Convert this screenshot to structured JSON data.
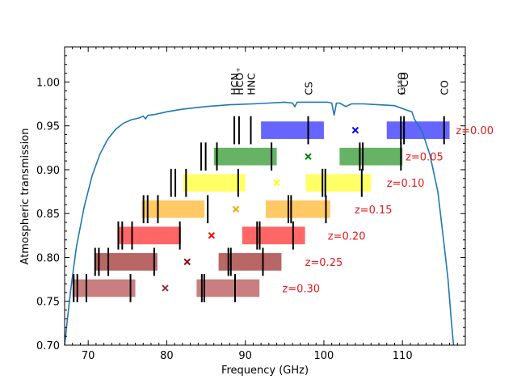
{
  "chart_data": {
    "type": "line",
    "xlabel": "Frequency (GHz)",
    "ylabel": "Atmospheric transmission",
    "xlim": [
      67,
      118
    ],
    "ylim": [
      0.7,
      1.04
    ],
    "xticks": [
      70,
      80,
      90,
      100,
      110
    ],
    "yticks": [
      0.7,
      0.75,
      0.8,
      0.85,
      0.9,
      0.95,
      1.0
    ],
    "transmission_curve": {
      "color": "#1f77b4",
      "x": [
        67.0,
        67.3,
        67.8,
        68.5,
        69.5,
        70.5,
        71.5,
        72.5,
        73.5,
        74.5,
        75.5,
        76.5,
        77.0,
        77.3,
        77.6,
        78.5,
        80.0,
        82.0,
        85.0,
        88.0,
        91.0,
        93.0,
        95.0,
        96.0,
        96.3,
        96.6,
        98.0,
        99.5,
        100.5,
        101.0,
        101.3,
        101.6,
        102.0,
        102.8,
        103.5,
        105.0,
        107.0,
        109.0,
        110.5,
        111.2,
        111.5,
        112.5,
        113.5,
        114.5,
        115.3,
        115.8,
        116.2,
        116.5
      ],
      "y": [
        0.7,
        0.725,
        0.765,
        0.812,
        0.858,
        0.893,
        0.918,
        0.935,
        0.946,
        0.953,
        0.957,
        0.959,
        0.961,
        0.958,
        0.962,
        0.963,
        0.966,
        0.969,
        0.972,
        0.974,
        0.975,
        0.976,
        0.977,
        0.976,
        0.972,
        0.977,
        0.977,
        0.977,
        0.977,
        0.976,
        0.962,
        0.976,
        0.976,
        0.972,
        0.975,
        0.975,
        0.974,
        0.973,
        0.968,
        0.966,
        0.958,
        0.944,
        0.917,
        0.875,
        0.815,
        0.775,
        0.73,
        0.7
      ]
    },
    "rest_lines": [
      {
        "label": "HCN",
        "freq": 88.6
      },
      {
        "label": "HCO$^+$",
        "display": "HCO⁺",
        "freq": 89.2
      },
      {
        "label": "HNC",
        "freq": 90.7
      },
      {
        "label": "CS",
        "freq": 98.0
      },
      {
        "label": "C$^{18}$O",
        "display": "C¹⁸O",
        "freq": 109.8
      },
      {
        "label": "$^{13}$CO",
        "display": "¹³CO",
        "freq": 110.2
      },
      {
        "label": "CO",
        "freq": 115.3
      }
    ],
    "redshift_rows": [
      {
        "label": "z=0.00",
        "color": "#0000ff",
        "y": 0.945,
        "bands": [
          [
            92.0,
            100.0
          ],
          [
            108.0,
            116.0
          ]
        ],
        "marker_x": 104.0,
        "label_x": 116.8
      },
      {
        "label": "z=0.05",
        "color": "#008000",
        "y": 0.915,
        "bands": [
          [
            86.0,
            94.0
          ],
          [
            102.0,
            110.0
          ]
        ],
        "marker_x": 98.0,
        "label_x": 110.4
      },
      {
        "label": "z=0.10",
        "color": "#ffff00",
        "y": 0.885,
        "bands": [
          [
            82.1,
            90.0
          ],
          [
            97.7,
            106.0
          ]
        ],
        "marker_x": 94.0,
        "label_x": 108.0
      },
      {
        "label": "z=0.15",
        "color": "#ffa500",
        "y": 0.855,
        "bands": [
          [
            76.8,
            84.8
          ],
          [
            92.6,
            100.8
          ]
        ],
        "marker_x": 88.8,
        "label_x": 103.9
      },
      {
        "label": "z=0.20",
        "color": "#ff0000",
        "y": 0.825,
        "bands": [
          [
            73.8,
            81.8
          ],
          [
            89.6,
            97.6
          ]
        ],
        "marker_x": 85.7,
        "label_x": 100.5
      },
      {
        "label": "z=0.25",
        "color": "#8b0000",
        "y": 0.795,
        "bands": [
          [
            70.8,
            78.8
          ],
          [
            86.6,
            94.6
          ]
        ],
        "marker_x": 82.6,
        "label_x": 97.6
      },
      {
        "label": "z=0.30",
        "color": "#a52a2a",
        "y": 0.765,
        "bands": [
          [
            68.0,
            76.0
          ],
          [
            83.8,
            91.8
          ]
        ],
        "marker_x": 79.8,
        "label_x": 94.7
      }
    ]
  }
}
